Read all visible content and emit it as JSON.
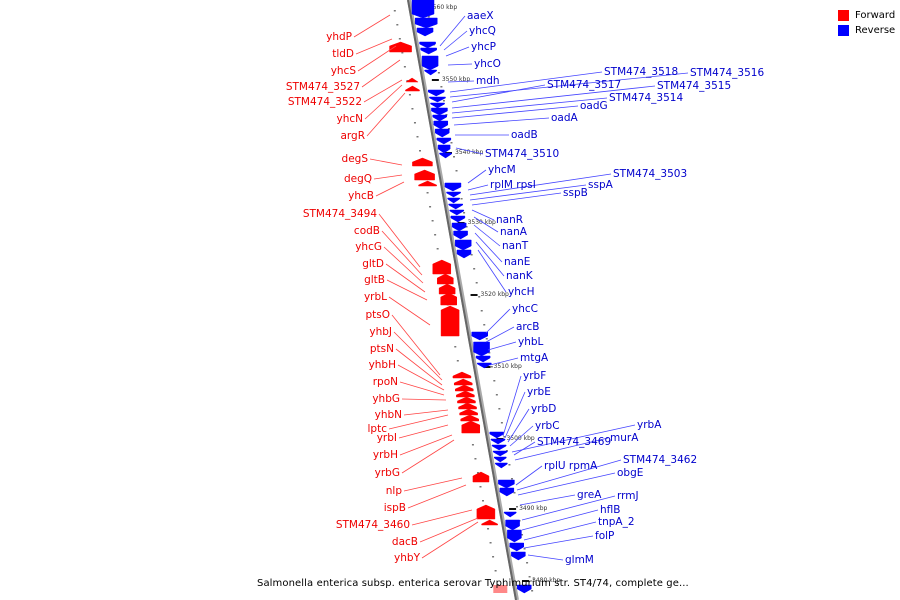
{
  "legend": {
    "items": [
      {
        "label": "Forward",
        "color": "#ff0000"
      },
      {
        "label": "Reverse",
        "color": "#0000ff"
      }
    ]
  },
  "caption": "Salmonella enterica subsp. enterica serovar Typhimurium str. ST4/74, complete ge...",
  "colors": {
    "forward": "#ff0000",
    "reverse": "#0000ff",
    "axis": "#888888"
  },
  "scale_ticks": [
    "3560 kbp",
    "3550 kbp",
    "3540 kbp",
    "3530 kbp",
    "3520 kbp",
    "3510 kbp",
    "3500 kbp",
    "3490 kbp",
    "3480 kbp"
  ],
  "forward_genes": [
    "yhdP",
    "tldD",
    "yhcS",
    "STM474_3527",
    "STM474_3522",
    "yhcN",
    "argR",
    "degS",
    "degQ",
    "yhcB",
    "STM474_3494",
    "codB",
    "yhcG",
    "gltD",
    "gltB",
    "yrbL",
    "ptsO",
    "yhbJ",
    "ptsN",
    "yhbH",
    "rpoN",
    "yhbG",
    "yhbN",
    "lptc",
    "yrbI",
    "yrbH",
    "yrbG",
    "nlp",
    "ispB",
    "STM474_3460",
    "dacB",
    "yhbY"
  ],
  "reverse_genes": [
    "aaeX",
    "yhcQ",
    "yhcP",
    "yhcO",
    "mdh",
    "STM474_3518",
    "STM474_3516",
    "STM474_3517",
    "STM474_3515",
    "STM474_3514",
    "oadG",
    "oadA",
    "oadB",
    "STM474_3510",
    "yhcM",
    "rplM rpsI",
    "STM474_3503",
    "sspA",
    "sspB",
    "nanR",
    "nanA",
    "nanT",
    "nanE",
    "nanK",
    "yhcH",
    "yhcC",
    "arcB",
    "yhbL",
    "mtgA",
    "yrbF",
    "yrbE",
    "yrbD",
    "yrbC",
    "yrbA",
    "STM474_3469",
    "murA",
    "rplU rpmA",
    "STM474_3462",
    "obgE",
    "greA",
    "rrmJ",
    "hflB",
    "tnpA_2",
    "folP",
    "glmM"
  ]
}
